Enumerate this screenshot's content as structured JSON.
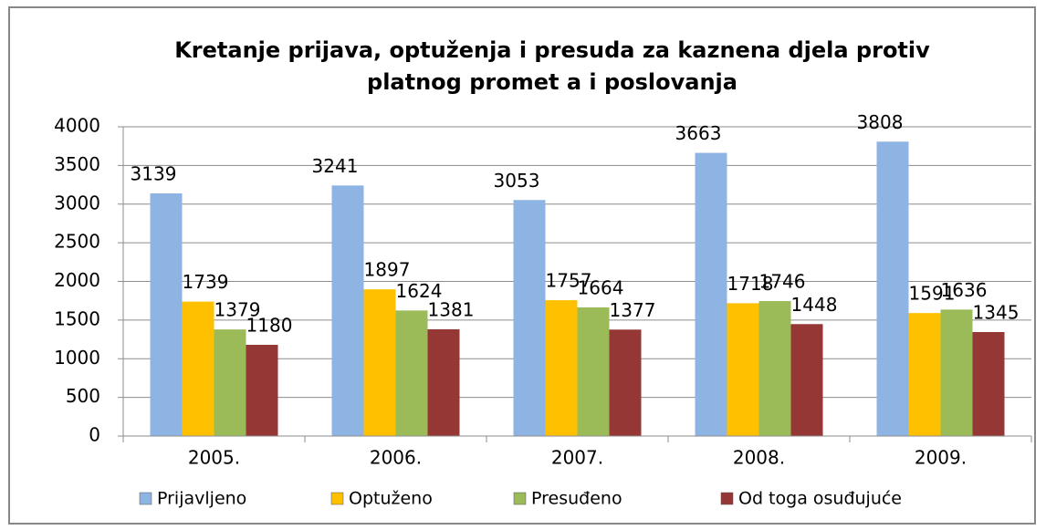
{
  "chart_data": {
    "type": "bar",
    "title": [
      "Kretanje prijava, optuženja i presuda za kaznena djela protiv",
      "platnog promet a i poslovanja"
    ],
    "categories": [
      "2005.",
      "2006.",
      "2007.",
      "2008.",
      "2009."
    ],
    "series": [
      {
        "name": "Prijavljeno",
        "color": "#8eb4e3",
        "values": [
          3139,
          3241,
          3053,
          3663,
          3808
        ]
      },
      {
        "name": "Optuženo",
        "color": "#ffc000",
        "values": [
          1739,
          1897,
          1757,
          1718,
          1591
        ]
      },
      {
        "name": "Presuđeno",
        "color": "#9bbb59",
        "values": [
          1379,
          1624,
          1664,
          1746,
          1636
        ]
      },
      {
        "name": "Od toga osuđujuće",
        "color": "#953735",
        "values": [
          1180,
          1381,
          1377,
          1448,
          1345
        ]
      }
    ],
    "ylim": [
      0,
      4000
    ],
    "yticks": [
      0,
      500,
      1000,
      1500,
      2000,
      2500,
      3000,
      3500,
      4000
    ],
    "grid": true,
    "legend": "bottom"
  }
}
